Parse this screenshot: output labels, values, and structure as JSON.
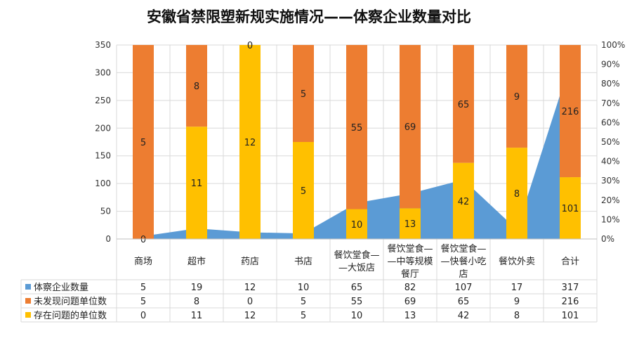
{
  "chart_data": {
    "type": "bar",
    "title": "安徽省禁限塑新规实施情况——体察企业数量对比",
    "categories": [
      [
        "商场"
      ],
      [
        "超市"
      ],
      [
        "药店"
      ],
      [
        "书店"
      ],
      [
        "餐饮堂食—",
        "—大饭店"
      ],
      [
        "餐饮堂食—",
        "—中等规模",
        "餐厅"
      ],
      [
        "餐饮堂食—",
        "—快餐小吃",
        "店"
      ],
      [
        "餐饮外卖"
      ],
      [
        "合计"
      ]
    ],
    "series": [
      {
        "name": "体察企业数量",
        "type": "area",
        "axis": "left",
        "color": "#5B9BD5",
        "values": [
          5,
          19,
          12,
          10,
          65,
          82,
          107,
          17,
          317
        ]
      },
      {
        "name": "未发现问题单位数",
        "type": "stacked-percent-bar",
        "axis": "right",
        "color": "#ED7D31",
        "values": [
          5,
          8,
          0,
          5,
          55,
          69,
          65,
          9,
          216
        ]
      },
      {
        "name": "存在问题的单位数",
        "type": "stacked-percent-bar",
        "axis": "right",
        "color": "#FFC000",
        "values": [
          0,
          11,
          12,
          5,
          10,
          13,
          42,
          8,
          101
        ]
      }
    ],
    "y_left": {
      "min": 0,
      "max": 350,
      "ticks": [
        "0",
        "50",
        "100",
        "150",
        "200",
        "250",
        "300",
        "350"
      ]
    },
    "y_right": {
      "min": 0,
      "max": 100,
      "ticks": [
        "0%",
        "10%",
        "20%",
        "30%",
        "40%",
        "50%",
        "60%",
        "70%",
        "80%",
        "90%",
        "100%"
      ]
    },
    "grid": true,
    "legend": "data-table"
  }
}
